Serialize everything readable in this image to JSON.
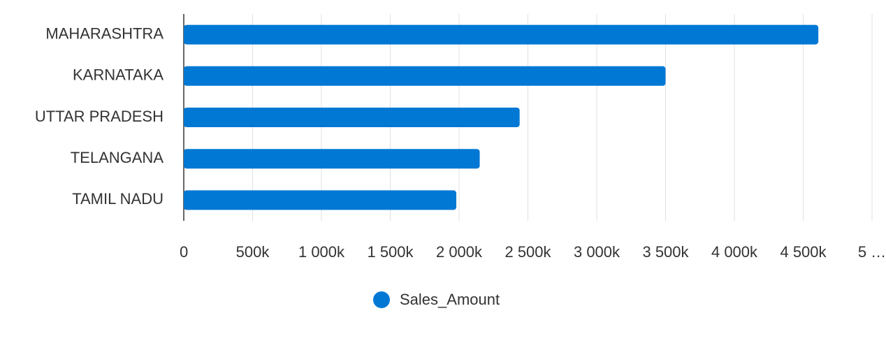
{
  "chart_data": {
    "type": "bar",
    "orientation": "horizontal",
    "categories": [
      "MAHARASHTRA",
      "KARNATAKA",
      "UTTAR PRADESH",
      "TELANGANA",
      "TAMIL NADU"
    ],
    "series": [
      {
        "name": "Sales_Amount",
        "color": "#0078d4",
        "values": [
          4610000,
          3500000,
          2440000,
          2150000,
          1980000
        ]
      }
    ],
    "xlim": [
      0,
      5000000
    ],
    "xticks": [
      0,
      {
        "value": 500000,
        "label": "500k"
      },
      {
        "value": 1000000,
        "label": "1 000k"
      },
      {
        "value": 1500000,
        "label": "1 500k"
      },
      {
        "value": 2000000,
        "label": "2 000k"
      },
      {
        "value": 2500000,
        "label": "2 500k"
      },
      {
        "value": 3000000,
        "label": "3 000k"
      },
      {
        "value": 3500000,
        "label": "3 500k"
      },
      {
        "value": 4000000,
        "label": "4 000k"
      },
      {
        "value": 4500000,
        "label": "4 500k"
      },
      {
        "value": 5000000,
        "label": "5 …"
      }
    ],
    "grid": true,
    "legend": "bottom"
  }
}
